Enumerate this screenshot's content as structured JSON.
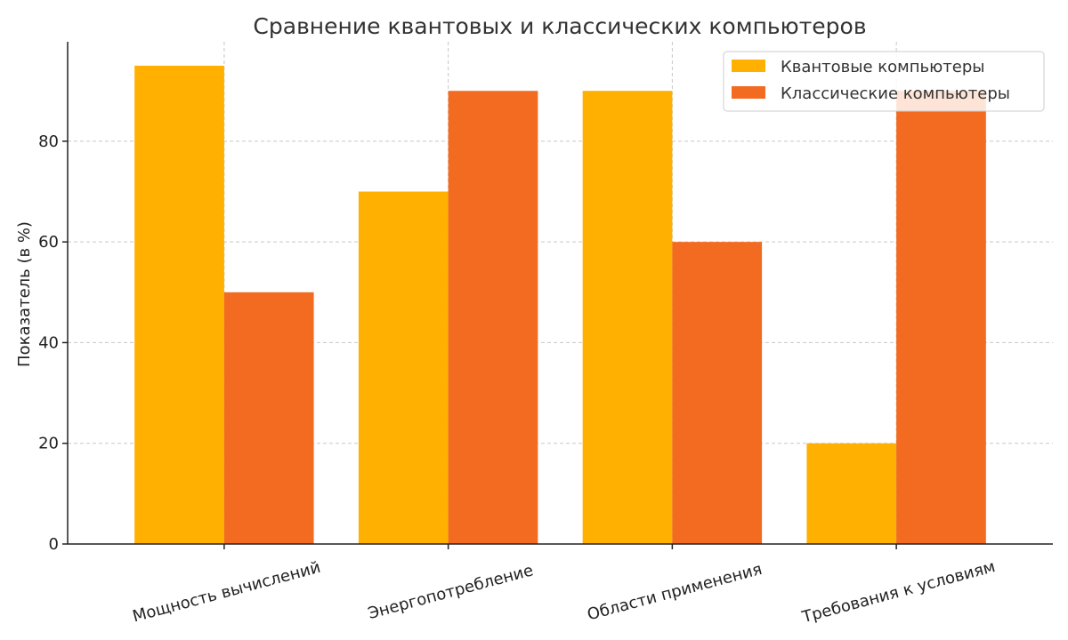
{
  "chart_data": {
    "type": "bar",
    "title": "Сравнение квантовых и классических компьютеров",
    "xlabel": "",
    "ylabel": "Показатель (в %)",
    "categories": [
      "Мощность вычислений",
      "Энергопотребление",
      "Области применения",
      "Требования к условиям"
    ],
    "series": [
      {
        "name": "Квантовые компьютеры",
        "color": "#FFB000",
        "values": [
          95,
          70,
          90,
          20
        ]
      },
      {
        "name": "Классические компьютеры",
        "color": "#F26B21",
        "values": [
          50,
          90,
          60,
          90
        ]
      }
    ],
    "ylim": [
      0,
      99.75
    ],
    "yticks": [
      0,
      20,
      40,
      60,
      80
    ],
    "grid": true,
    "legend_position": "top-right"
  }
}
